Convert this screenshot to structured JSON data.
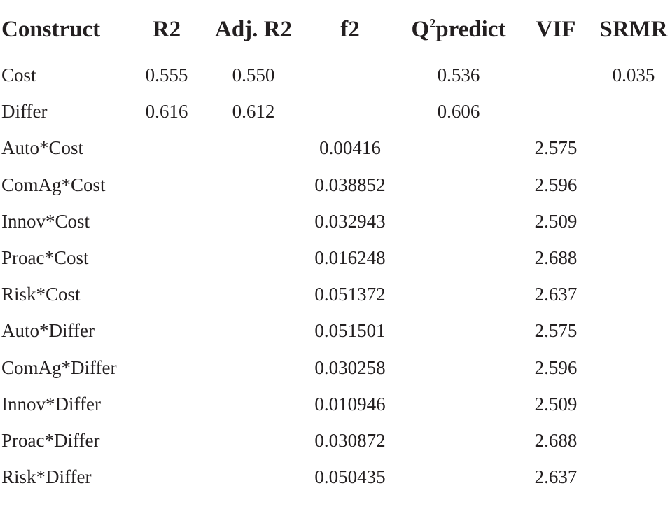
{
  "table": {
    "headers": {
      "construct": "Construct",
      "r2": "R2",
      "adj_r2": "Adj. R2",
      "f2": "f2",
      "q2_letter": "Q",
      "q2_sup": "2",
      "q2_rest": "predict",
      "vif": "VIF",
      "srmr": "SRMR"
    },
    "rows": [
      {
        "construct": "Cost",
        "r2": "0.555",
        "adj_r2": "0.550",
        "f2": "",
        "q2predict": "0.536",
        "vif": "",
        "srmr": "0.035"
      },
      {
        "construct": "Differ",
        "r2": "0.616",
        "adj_r2": "0.612",
        "f2": "",
        "q2predict": "0.606",
        "vif": "",
        "srmr": ""
      },
      {
        "construct": "Auto*Cost",
        "r2": "",
        "adj_r2": "",
        "f2": "0.00416",
        "q2predict": "",
        "vif": "2.575",
        "srmr": ""
      },
      {
        "construct": "ComAg*Cost",
        "r2": "",
        "adj_r2": "",
        "f2": "0.038852",
        "q2predict": "",
        "vif": "2.596",
        "srmr": ""
      },
      {
        "construct": "Innov*Cost",
        "r2": "",
        "adj_r2": "",
        "f2": "0.032943",
        "q2predict": "",
        "vif": "2.509",
        "srmr": ""
      },
      {
        "construct": "Proac*Cost",
        "r2": "",
        "adj_r2": "",
        "f2": "0.016248",
        "q2predict": "",
        "vif": "2.688",
        "srmr": ""
      },
      {
        "construct": "Risk*Cost",
        "r2": "",
        "adj_r2": "",
        "f2": "0.051372",
        "q2predict": "",
        "vif": "2.637",
        "srmr": ""
      },
      {
        "construct": "Auto*Differ",
        "r2": "",
        "adj_r2": "",
        "f2": "0.051501",
        "q2predict": "",
        "vif": "2.575",
        "srmr": ""
      },
      {
        "construct": "ComAg*Differ",
        "r2": "",
        "adj_r2": "",
        "f2": "0.030258",
        "q2predict": "",
        "vif": "2.596",
        "srmr": ""
      },
      {
        "construct": "Innov*Differ",
        "r2": "",
        "adj_r2": "",
        "f2": "0.010946",
        "q2predict": "",
        "vif": "2.509",
        "srmr": ""
      },
      {
        "construct": "Proac*Differ",
        "r2": "",
        "adj_r2": "",
        "f2": "0.030872",
        "q2predict": "",
        "vif": "2.688",
        "srmr": ""
      },
      {
        "construct": "Risk*Differ",
        "r2": "",
        "adj_r2": "",
        "f2": "0.050435",
        "q2predict": "",
        "vif": "2.637",
        "srmr": ""
      }
    ]
  }
}
